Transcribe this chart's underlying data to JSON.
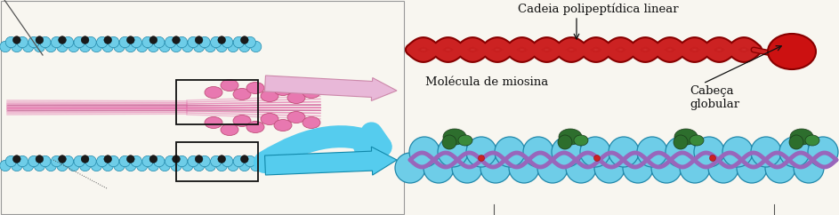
{
  "bg_color": "#f8f6f0",
  "labels": {
    "molecula_miosina": "Molécula de miosina",
    "cabeca_globular": "Cabeça\nglobular",
    "cadeia_polipeptidica": "Cadeia polipeptídica linear"
  },
  "label_fontsize": 9,
  "colors": {
    "actin_blue": "#6ecde8",
    "actin_dark": "#2288aa",
    "actin_black": "#1a1a1a",
    "myosin_pink": "#e878b0",
    "myosin_dark_pink": "#c0507a",
    "myosin_line": "#cc44aa",
    "tropomyosin_purple": "#9966bb",
    "troponin_green": "#2d6e2d",
    "troponin_green2": "#3a8a3a",
    "myosin_red": "#cc2222",
    "myosin_red_dark": "#880000",
    "myosin_head_red": "#cc1111",
    "arrow_blue": "#55ccee",
    "arrow_blue_edge": "#1188aa",
    "arrow_pink": "#e8b8d8",
    "arrow_pink_edge": "#cc88aa",
    "box_color": "#111111",
    "line_color": "#555555",
    "text_color": "#111111",
    "pointer_line": "#555555"
  },
  "figsize": [
    9.43,
    2.42
  ],
  "dpi": 100
}
